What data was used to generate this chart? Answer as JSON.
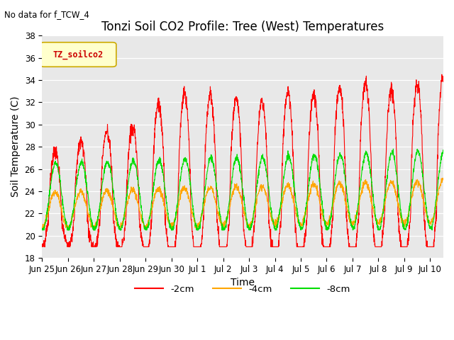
{
  "title": "Tonzi Soil CO2 Profile: Tree (West) Temperatures",
  "no_data_text": "No data for f_TCW_4",
  "legend_label_text": "TZ_soilco2",
  "xlabel": "Time",
  "ylabel": "Soil Temperature (C)",
  "ylim": [
    18,
    38
  ],
  "yticks": [
    18,
    20,
    22,
    24,
    26,
    28,
    30,
    32,
    34,
    36,
    38
  ],
  "series_colors": {
    "-2cm": "#ff0000",
    "-4cm": "#ffa500",
    "-8cm": "#00dd00"
  },
  "fig_bg_color": "#ffffff",
  "plot_bg_color": "#e8e8e8",
  "title_fontsize": 12,
  "axis_label_fontsize": 10,
  "tick_label_fontsize": 8.5,
  "x_tick_labels": [
    "Jun 25",
    "Jun 26",
    "Jun 27",
    "Jun 28",
    "Jun 29",
    "Jun 30",
    "Jul 1",
    "Jul 2",
    "Jul 3",
    "Jul 4",
    "Jul 5",
    "Jul 6",
    "Jul 7",
    "Jul 8",
    "Jul 9",
    "Jul 10"
  ],
  "num_points_per_day": 144
}
